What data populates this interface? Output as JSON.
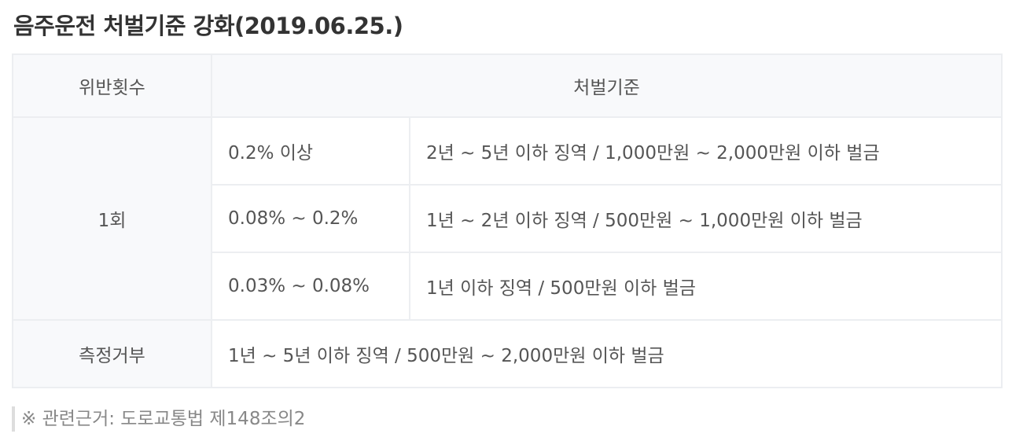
{
  "title": "음주운전 처벌기준 강화(2019.06.25.)",
  "table": {
    "headers": [
      "위반횟수",
      "처벌기준"
    ],
    "first_offense": {
      "label": "1회",
      "rows": [
        {
          "bac": "0.2% 이상",
          "penalty": "2년 ~ 5년 이하 징역 / 1,000만원 ~ 2,000만원 이하 벌금"
        },
        {
          "bac": "0.08% ~ 0.2%",
          "penalty": "1년 ~ 2년 이하 징역 / 500만원 ~ 1,000만원 이하 벌금"
        },
        {
          "bac": "0.03% ~ 0.08%",
          "penalty": "1년 이하 징역 / 500만원 이하 벌금"
        }
      ]
    },
    "refusal": {
      "label": "측정거부",
      "penalty": "1년 ~ 5년 이하 징역 / 500만원 ~ 2,000만원 이하 벌금"
    }
  },
  "note": "※ 관련근거: 도로교통법 제148조의2"
}
